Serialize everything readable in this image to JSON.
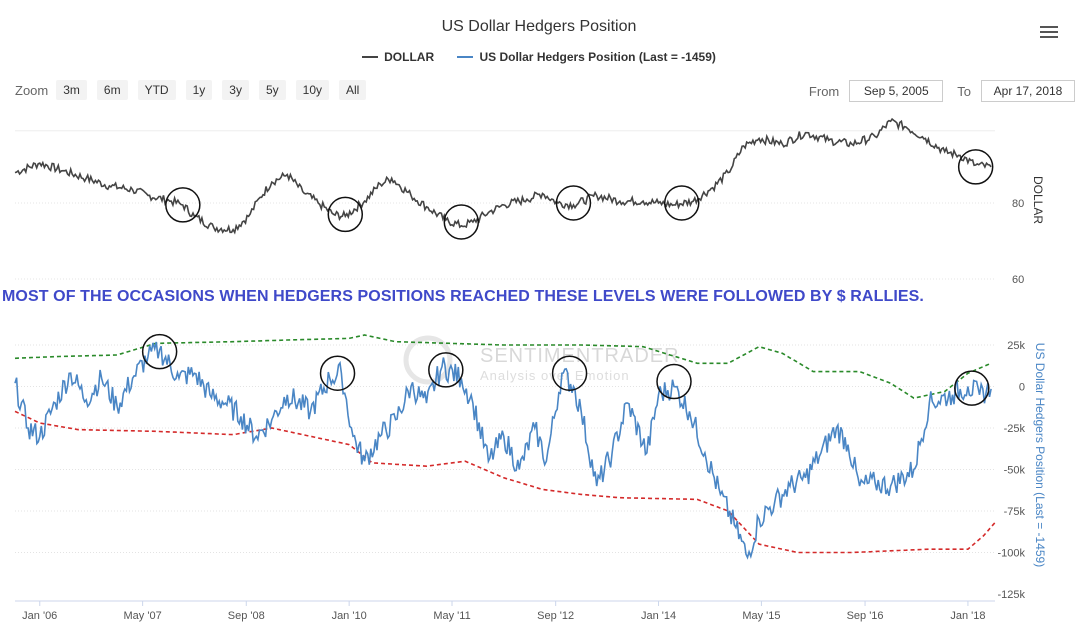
{
  "chart_data": [
    {
      "type": "line",
      "title": "US Dollar Hedgers Position",
      "ylabel": "DOLLAR",
      "ylim": [
        60,
        100
      ],
      "yticks": [
        80,
        60
      ],
      "grid": true,
      "series": [
        {
          "name": "DOLLAR",
          "color": "#444444",
          "points": [
            [
              2005.68,
              88
            ],
            [
              2006.0,
              90.5
            ],
            [
              2006.3,
              88.5
            ],
            [
              2006.6,
              86.5
            ],
            [
              2006.9,
              84.5
            ],
            [
              2007.2,
              83.5
            ],
            [
              2007.4,
              82
            ],
            [
              2007.7,
              80.5
            ],
            [
              2007.85,
              79.5
            ],
            [
              2008.0,
              76.5
            ],
            [
              2008.25,
              73.5
            ],
            [
              2008.5,
              73
            ],
            [
              2008.7,
              76.5
            ],
            [
              2008.85,
              81.5
            ],
            [
              2009.0,
              85.5
            ],
            [
              2009.2,
              87.5
            ],
            [
              2009.4,
              83
            ],
            [
              2009.6,
              80
            ],
            [
              2009.8,
              77
            ],
            [
              2009.95,
              76.5
            ],
            [
              2010.2,
              80.5
            ],
            [
              2010.4,
              85
            ],
            [
              2010.55,
              86.5
            ],
            [
              2010.8,
              82
            ],
            [
              2011.0,
              79
            ],
            [
              2011.25,
              75.5
            ],
            [
              2011.45,
              74
            ],
            [
              2011.6,
              75
            ],
            [
              2011.8,
              77.5
            ],
            [
              2012.0,
              79.5
            ],
            [
              2012.3,
              81
            ],
            [
              2012.5,
              82.5
            ],
            [
              2012.7,
              80
            ],
            [
              2012.9,
              79.5
            ],
            [
              2013.2,
              82
            ],
            [
              2013.5,
              80.5
            ],
            [
              2013.8,
              80.5
            ],
            [
              2014.0,
              80
            ],
            [
              2014.2,
              79.5
            ],
            [
              2014.45,
              80.5
            ],
            [
              2014.7,
              84
            ],
            [
              2014.9,
              88
            ],
            [
              2015.1,
              95
            ],
            [
              2015.3,
              97
            ],
            [
              2015.6,
              95.5
            ],
            [
              2015.9,
              98.5
            ],
            [
              2016.2,
              96.5
            ],
            [
              2016.5,
              95.5
            ],
            [
              2016.8,
              97.5
            ],
            [
              2017.0,
              101.5
            ],
            [
              2017.2,
              100
            ],
            [
              2017.45,
              97
            ],
            [
              2017.7,
              93.5
            ],
            [
              2017.9,
              92.5
            ],
            [
              2018.1,
              90
            ],
            [
              2018.3,
              89.5
            ]
          ]
        }
      ]
    },
    {
      "type": "line",
      "ylabel": "US Dollar Hedgers Position (Last = -1459)",
      "ylim": [
        -125000,
        25000
      ],
      "yticks": [
        "25k",
        "0",
        "-25k",
        "-50k",
        "-75k",
        "-100k",
        "-125k"
      ],
      "xticks": [
        "Jan '06",
        "May '07",
        "Sep '08",
        "Jan '10",
        "May '11",
        "Sep '12",
        "Jan '14",
        "May '15",
        "Sep '16",
        "Jan '18"
      ],
      "grid": true,
      "series": [
        {
          "name": "US Dollar Hedgers Position (Last = -1459)",
          "color": "#4a86c5",
          "points": [
            [
              2005.68,
              2000
            ],
            [
              2005.85,
              -25000
            ],
            [
              2006.0,
              -30000
            ],
            [
              2006.2,
              -10000
            ],
            [
              2006.4,
              8000
            ],
            [
              2006.6,
              -8000
            ],
            [
              2006.8,
              5000
            ],
            [
              2007.0,
              -12000
            ],
            [
              2007.2,
              5000
            ],
            [
              2007.4,
              18000
            ],
            [
              2007.55,
              22000
            ],
            [
              2007.8,
              5000
            ],
            [
              2008.0,
              8000
            ],
            [
              2008.2,
              -5000
            ],
            [
              2008.4,
              -10000
            ],
            [
              2008.6,
              -18000
            ],
            [
              2008.8,
              -30000
            ],
            [
              2009.0,
              -20000
            ],
            [
              2009.2,
              -5000
            ],
            [
              2009.5,
              -15000
            ],
            [
              2009.75,
              5000
            ],
            [
              2009.9,
              8000
            ],
            [
              2010.05,
              -30000
            ],
            [
              2010.2,
              -45000
            ],
            [
              2010.4,
              -30000
            ],
            [
              2010.6,
              -20000
            ],
            [
              2010.8,
              0
            ],
            [
              2011.0,
              -10000
            ],
            [
              2011.2,
              12000
            ],
            [
              2011.45,
              5000
            ],
            [
              2011.6,
              -10000
            ],
            [
              2011.8,
              -45000
            ],
            [
              2012.0,
              -30000
            ],
            [
              2012.2,
              -50000
            ],
            [
              2012.4,
              -25000
            ],
            [
              2012.55,
              -45000
            ],
            [
              2012.75,
              8000
            ],
            [
              2012.9,
              0
            ],
            [
              2013.0,
              -15000
            ],
            [
              2013.2,
              -60000
            ],
            [
              2013.4,
              -40000
            ],
            [
              2013.6,
              -10000
            ],
            [
              2013.85,
              -40000
            ],
            [
              2014.0,
              -5000
            ],
            [
              2014.2,
              0
            ],
            [
              2014.4,
              -15000
            ],
            [
              2014.6,
              -40000
            ],
            [
              2014.8,
              -65000
            ],
            [
              2015.0,
              -85000
            ],
            [
              2015.15,
              -103000
            ],
            [
              2015.3,
              -80000
            ],
            [
              2015.5,
              -70000
            ],
            [
              2015.7,
              -60000
            ],
            [
              2015.9,
              -55000
            ],
            [
              2016.1,
              -40000
            ],
            [
              2016.3,
              -25000
            ],
            [
              2016.45,
              -35000
            ],
            [
              2016.6,
              -60000
            ],
            [
              2016.8,
              -58000
            ],
            [
              2017.0,
              -60000
            ],
            [
              2017.3,
              -50000
            ],
            [
              2017.5,
              -10000
            ],
            [
              2017.8,
              -5000
            ],
            [
              2018.0,
              0
            ],
            [
              2018.15,
              -5000
            ],
            [
              2018.3,
              -1459
            ]
          ]
        },
        {
          "name": "upper band",
          "color": "#2a8a2a",
          "points": [
            [
              2005.68,
              17000
            ],
            [
              2006.2,
              18000
            ],
            [
              2007.0,
              19000
            ],
            [
              2007.5,
              26000
            ],
            [
              2008.5,
              27000
            ],
            [
              2009.2,
              28000
            ],
            [
              2010.0,
              29000
            ],
            [
              2010.2,
              31000
            ],
            [
              2010.6,
              27000
            ],
            [
              2011.3,
              26000
            ],
            [
              2012.0,
              25000
            ],
            [
              2013.0,
              25000
            ],
            [
              2013.8,
              24000
            ],
            [
              2014.5,
              14000
            ],
            [
              2014.9,
              14000
            ],
            [
              2015.3,
              24000
            ],
            [
              2015.6,
              20000
            ],
            [
              2016.0,
              9000
            ],
            [
              2016.6,
              9000
            ],
            [
              2017.0,
              2000
            ],
            [
              2017.3,
              -7000
            ],
            [
              2017.7,
              -3000
            ],
            [
              2018.0,
              8000
            ],
            [
              2018.3,
              14000
            ]
          ]
        },
        {
          "name": "lower band",
          "color": "#d42a2a",
          "points": [
            [
              2005.68,
              -15000
            ],
            [
              2006.0,
              -22000
            ],
            [
              2006.5,
              -26000
            ],
            [
              2007.5,
              -27000
            ],
            [
              2008.5,
              -29000
            ],
            [
              2009.0,
              -25000
            ],
            [
              2009.5,
              -30000
            ],
            [
              2010.0,
              -35000
            ],
            [
              2010.3,
              -46000
            ],
            [
              2011.0,
              -48000
            ],
            [
              2011.5,
              -45000
            ],
            [
              2012.0,
              -55000
            ],
            [
              2012.5,
              -62000
            ],
            [
              2013.0,
              -65000
            ],
            [
              2013.5,
              -67000
            ],
            [
              2014.5,
              -68000
            ],
            [
              2014.9,
              -75000
            ],
            [
              2015.3,
              -95000
            ],
            [
              2015.8,
              -100000
            ],
            [
              2016.5,
              -100000
            ],
            [
              2017.5,
              -98000
            ],
            [
              2018.0,
              -98000
            ],
            [
              2018.2,
              -90000
            ],
            [
              2018.35,
              -82000
            ]
          ]
        }
      ],
      "annotation": "MOST OF THE OCCASIONS WHEN HEDGERS POSITIONS REACHED THESE LEVELS WERE FOLLOWED BY $ RALLIES."
    }
  ],
  "header": {
    "title": "US Dollar Hedgers Position"
  },
  "legend": {
    "items": [
      {
        "label": "DOLLAR",
        "color": "#444444"
      },
      {
        "label": "US Dollar Hedgers Position (Last = -1459)",
        "color": "#4a86c5"
      }
    ]
  },
  "zoom": {
    "label": "Zoom",
    "buttons": [
      "3m",
      "6m",
      "YTD",
      "1y",
      "3y",
      "5y",
      "10y",
      "All"
    ]
  },
  "range": {
    "from_label": "From",
    "from_value": "Sep 5, 2005",
    "to_label": "To",
    "to_value": "Apr 17, 2018"
  },
  "watermark": {
    "line1": "SENTIMENTRADER",
    "line2": "Analysis over Emotion"
  }
}
